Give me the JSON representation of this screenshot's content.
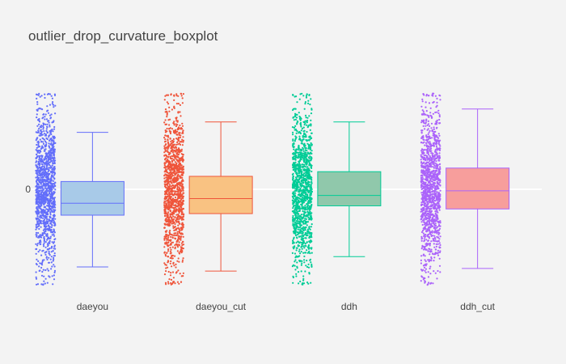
{
  "chart_data": {
    "type": "box",
    "title": "outlier_drop_curvature_boxplot",
    "xlabel": "",
    "ylabel": "",
    "y_tick_labels": [
      "0"
    ],
    "y_range": [
      -1.95,
      1.95
    ],
    "zero_line": true,
    "grid": false,
    "legend": "none",
    "boxpoints": "all",
    "categories": [
      "daeyou",
      "daeyou_cut",
      "ddh",
      "ddh_cut"
    ],
    "series": [
      {
        "category": "daeyou",
        "color": "#636efa",
        "fill": "#a8cae8",
        "lowerfence": -1.5,
        "q1": -0.5,
        "median": -0.27,
        "q3": 0.15,
        "upperfence": 1.1,
        "points_min": -1.85,
        "points_max": 1.85
      },
      {
        "category": "daeyou_cut",
        "color": "#ef553b",
        "fill": "#f9c282",
        "lowerfence": -1.58,
        "q1": -0.47,
        "median": -0.18,
        "q3": 0.25,
        "upperfence": 1.3,
        "points_min": -1.85,
        "points_max": 1.85
      },
      {
        "category": "ddh",
        "color": "#00cc96",
        "fill": "#90c8ab",
        "lowerfence": -1.3,
        "q1": -0.32,
        "median": -0.12,
        "q3": 0.34,
        "upperfence": 1.3,
        "points_min": -1.85,
        "points_max": 1.85
      },
      {
        "category": "ddh_cut",
        "color": "#ab63fa",
        "fill": "#f79e9c",
        "lowerfence": -1.53,
        "q1": -0.38,
        "median": -0.03,
        "q3": 0.41,
        "upperfence": 1.55,
        "points_min": -1.85,
        "points_max": 1.85
      }
    ]
  }
}
